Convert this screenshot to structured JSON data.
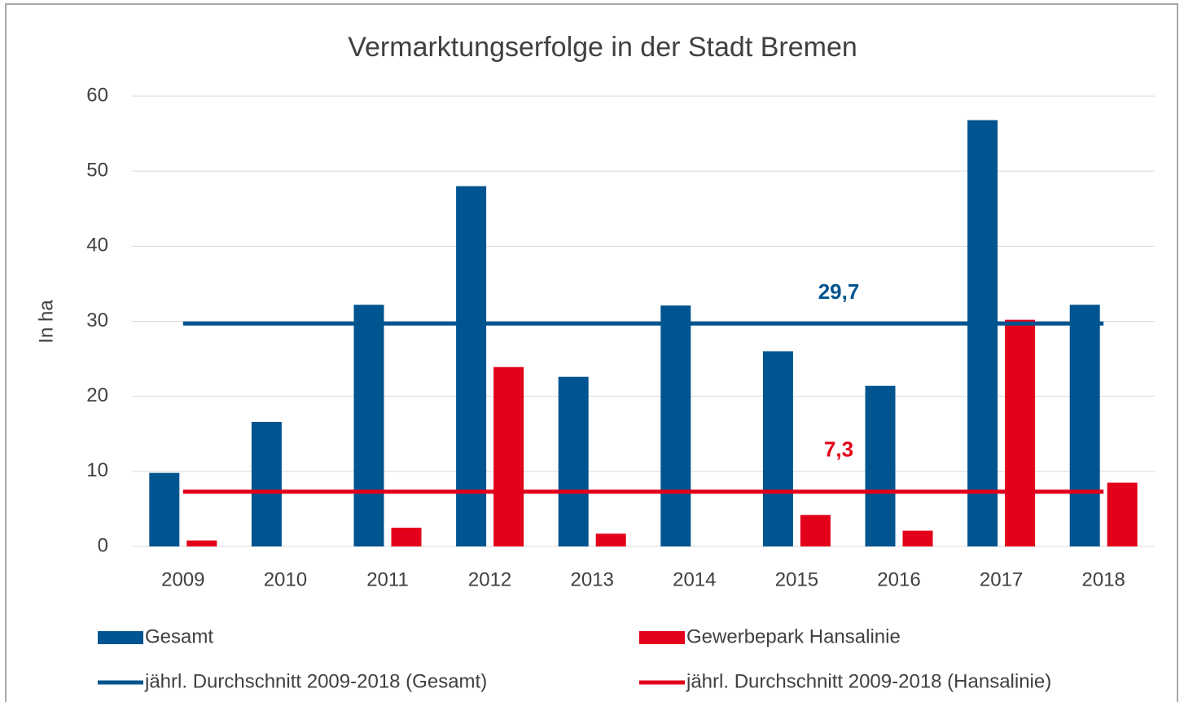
{
  "chart_data": {
    "type": "bar",
    "title": "Vermarktungserfolge in der Stadt Bremen",
    "y_label": "In ha",
    "categories": [
      "2009",
      "2010",
      "2011",
      "2012",
      "2013",
      "2014",
      "2015",
      "2016",
      "2017",
      "2018"
    ],
    "series": [
      {
        "name": "Gesamt",
        "color": "#00548f",
        "type": "bar",
        "values": [
          9.8,
          16.6,
          32.2,
          48,
          22.6,
          32.1,
          26,
          21.4,
          56.8,
          32.2
        ]
      },
      {
        "name": "Gewerbepark Hansalinie",
        "color": "#e2001a",
        "type": "bar",
        "values": [
          0.8,
          0,
          2.5,
          23.9,
          1.7,
          0,
          4.2,
          2.1,
          30.2,
          8.5
        ]
      },
      {
        "name": "jährl. Durchschnitt 2009-2018 (Gesamt)",
        "color": "#00548f",
        "type": "line",
        "values": [
          29.7,
          29.7,
          29.7,
          29.7,
          29.7,
          29.7,
          29.7,
          29.7,
          29.7,
          29.7
        ],
        "label": "29,7"
      },
      {
        "name": "jährl. Durchschnitt 2009-2018 (Hansalinie)",
        "color": "#e2001a",
        "type": "line",
        "values": [
          7.3,
          7.3,
          7.3,
          7.3,
          7.3,
          7.3,
          7.3,
          7.3,
          7.3,
          7.3
        ],
        "label": "7,3"
      }
    ],
    "ylim": [
      0,
      60
    ],
    "yticks": [
      0,
      10,
      20,
      30,
      40,
      50,
      60
    ],
    "grid": true
  }
}
